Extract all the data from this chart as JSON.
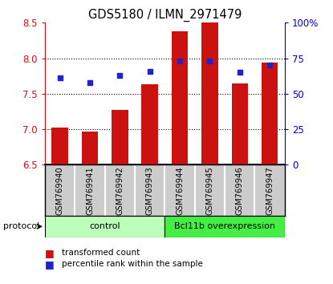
{
  "title": "GDS5180 / ILMN_2971479",
  "samples": [
    "GSM769940",
    "GSM769941",
    "GSM769942",
    "GSM769943",
    "GSM769944",
    "GSM769945",
    "GSM769946",
    "GSM769947"
  ],
  "transformed_count": [
    7.02,
    6.97,
    7.27,
    7.63,
    8.38,
    8.5,
    7.64,
    7.94
  ],
  "percentile_rank": [
    61,
    58,
    63,
    66,
    73,
    73,
    65,
    70
  ],
  "ylim_left": [
    6.5,
    8.5
  ],
  "ylim_right": [
    0,
    100
  ],
  "yticks_left": [
    6.5,
    7.0,
    7.5,
    8.0,
    8.5
  ],
  "yticks_right": [
    0,
    25,
    50,
    75,
    100
  ],
  "ytick_labels_right": [
    "0",
    "25",
    "50",
    "75",
    "100%"
  ],
  "bar_color": "#cc1111",
  "dot_color": "#2222cc",
  "bar_bottom": 6.5,
  "groups": [
    {
      "label": "control",
      "start": 0,
      "end": 4,
      "color": "#bbffbb"
    },
    {
      "label": "Bcl11b overexpression",
      "start": 4,
      "end": 8,
      "color": "#44ee44"
    }
  ],
  "protocol_label": "protocol",
  "legend_items": [
    {
      "label": "transformed count",
      "color": "#cc1111"
    },
    {
      "label": "percentile rank within the sample",
      "color": "#2222cc"
    }
  ],
  "background_color": "#ffffff",
  "label_bg_color": "#cccccc",
  "label_divider_color": "#ffffff",
  "grid_color": "#000000"
}
